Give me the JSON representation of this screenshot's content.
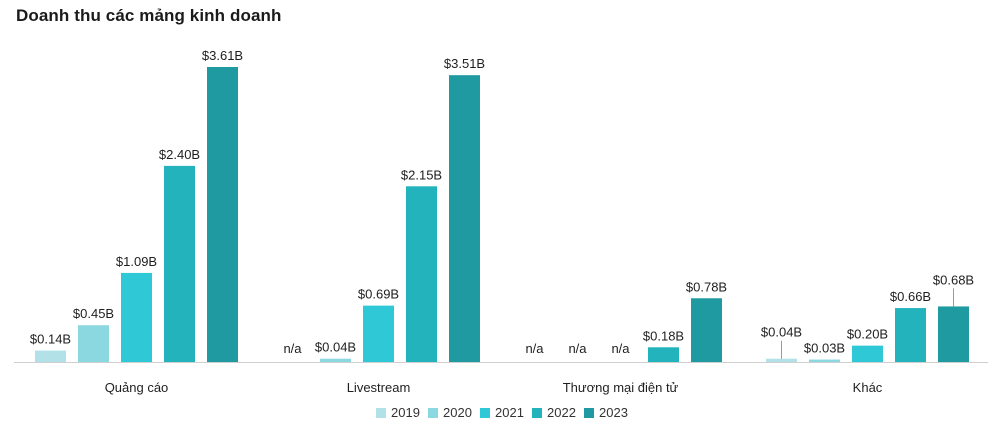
{
  "chart_data": {
    "type": "bar",
    "title": "Doanh thu các mảng kinh doanh",
    "categories": [
      "Quảng cáo",
      "Livestream",
      "Thương mại điện tử",
      "Khác"
    ],
    "series": [
      {
        "name": "2019",
        "color": "#b3e1e8",
        "values": [
          0.14,
          null,
          null,
          0.04
        ],
        "labels": [
          "$0.14B",
          "n/a",
          "n/a",
          "$0.04B"
        ]
      },
      {
        "name": "2020",
        "color": "#8bd8e0",
        "values": [
          0.45,
          0.04,
          null,
          0.03
        ],
        "labels": [
          "$0.45B",
          "$0.04B",
          "n/a",
          "$0.03B"
        ]
      },
      {
        "name": "2021",
        "color": "#2ec8d6",
        "values": [
          1.09,
          0.69,
          null,
          0.2
        ],
        "labels": [
          "$1.09B",
          "$0.69B",
          "n/a",
          "$0.20B"
        ]
      },
      {
        "name": "2022",
        "color": "#22b3bd",
        "values": [
          2.4,
          2.15,
          0.18,
          0.66
        ],
        "labels": [
          "$2.40B",
          "$2.15B",
          "$0.18B",
          "$0.66B"
        ]
      },
      {
        "name": "2023",
        "color": "#1f9aa0",
        "values": [
          3.61,
          3.51,
          0.78,
          0.68
        ],
        "labels": [
          "$3.61B",
          "$3.51B",
          "$0.78B",
          "$0.68B"
        ]
      }
    ],
    "ylim": [
      0,
      3.61
    ],
    "grid": false,
    "legend_position": "bottom"
  }
}
